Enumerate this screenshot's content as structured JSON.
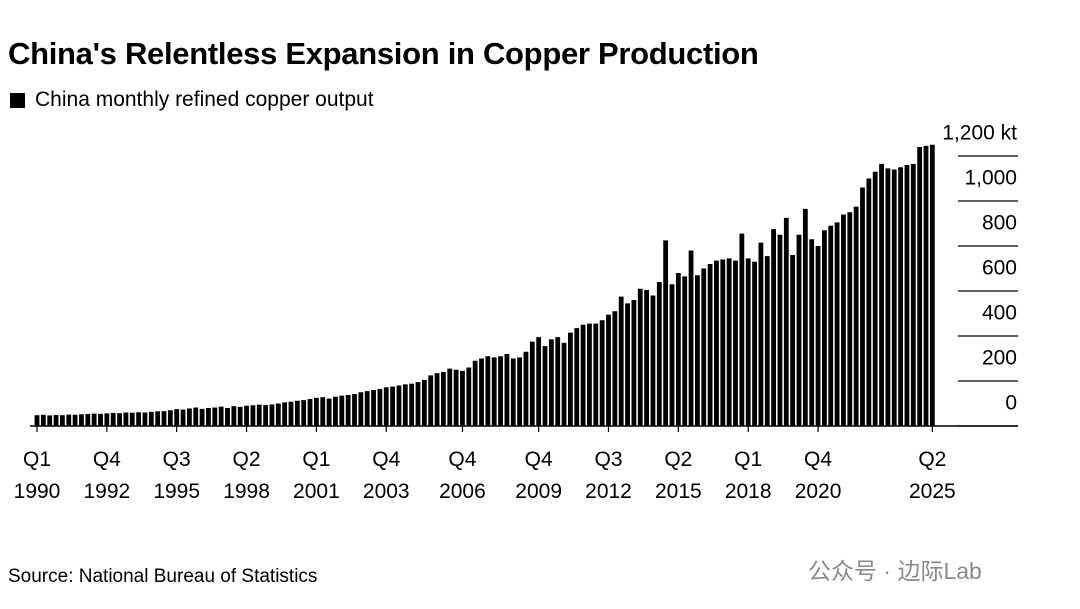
{
  "chart_data": {
    "type": "bar",
    "title": "China's Relentless Expansion in Copper Production",
    "source": "Source: National Bureau of Statistics",
    "watermark": "公众号 · 边际Lab",
    "categories": [
      "Q1\n1990",
      null,
      null,
      null,
      null,
      null,
      null,
      null,
      null,
      null,
      null,
      "Q4\n1992",
      null,
      null,
      null,
      null,
      null,
      null,
      null,
      null,
      null,
      null,
      "Q3\n1995",
      null,
      null,
      null,
      null,
      null,
      null,
      null,
      null,
      null,
      null,
      "Q2\n1998",
      null,
      null,
      null,
      null,
      null,
      null,
      null,
      null,
      null,
      null,
      "Q1\n2001",
      null,
      null,
      null,
      null,
      null,
      null,
      null,
      null,
      null,
      null,
      "Q4\n2003",
      null,
      null,
      null,
      null,
      null,
      null,
      null,
      null,
      null,
      null,
      null,
      "Q4\n2006",
      null,
      null,
      null,
      null,
      null,
      null,
      null,
      null,
      null,
      null,
      null,
      "Q4\n2009",
      null,
      null,
      null,
      null,
      null,
      null,
      null,
      null,
      null,
      null,
      "Q3\n2012",
      null,
      null,
      null,
      null,
      null,
      null,
      null,
      null,
      null,
      null,
      "Q2\n2015",
      null,
      null,
      null,
      null,
      null,
      null,
      null,
      null,
      null,
      null,
      "Q1\n2018",
      null,
      null,
      null,
      null,
      null,
      null,
      null,
      null,
      null,
      null,
      "Q4\n2020",
      null,
      null,
      null,
      null,
      null,
      null,
      null,
      null,
      null,
      null,
      null,
      null,
      null,
      null,
      null,
      null,
      null,
      "Q2\n2025"
    ],
    "series": [
      {
        "name": "China monthly refined copper output",
        "color": "#000000",
        "values": [
          48,
          50,
          47,
          49,
          48,
          51,
          50,
          52,
          53,
          55,
          54,
          56,
          58,
          57,
          60,
          59,
          61,
          60,
          63,
          65,
          66,
          70,
          75,
          73,
          78,
          82,
          76,
          80,
          82,
          86,
          80,
          88,
          85,
          90,
          92,
          95,
          93,
          96,
          100,
          105,
          108,
          112,
          115,
          120,
          125,
          128,
          122,
          130,
          135,
          138,
          142,
          150,
          155,
          160,
          165,
          172,
          175,
          180,
          185,
          188,
          195,
          205,
          225,
          235,
          240,
          255,
          250,
          245,
          260,
          290,
          300,
          310,
          305,
          310,
          320,
          300,
          305,
          330,
          375,
          395,
          355,
          385,
          395,
          370,
          415,
          435,
          450,
          455,
          455,
          470,
          495,
          510,
          575,
          545,
          560,
          610,
          605,
          580,
          640,
          825,
          630,
          680,
          665,
          780,
          670,
          700,
          720,
          735,
          740,
          745,
          735,
          855,
          745,
          730,
          815,
          755,
          875,
          850,
          925,
          760,
          850,
          965,
          830,
          800,
          870,
          890,
          905,
          940,
          950,
          975,
          1060,
          1100,
          1130,
          1165,
          1145,
          1140,
          1150,
          1160,
          1165,
          1240,
          1245,
          1250
        ]
      }
    ],
    "ylim": [
      0,
      1200
    ],
    "yticks": [
      0,
      200,
      400,
      600,
      800,
      {
        "value": 1000,
        "label": "1,000"
      },
      {
        "value": 1200,
        "label": "1,200 kt"
      }
    ],
    "grid": true
  }
}
